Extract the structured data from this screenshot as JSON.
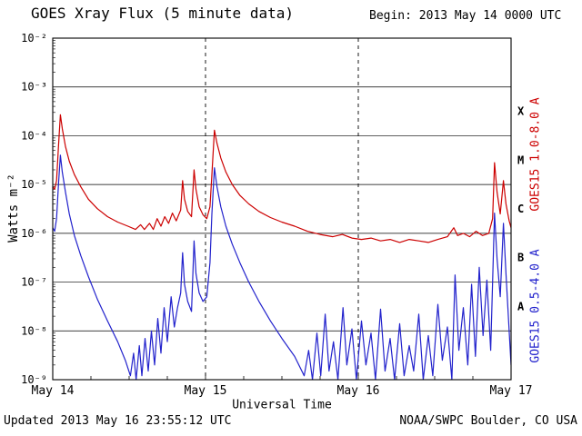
{
  "header": {
    "title": "GOES Xray Flux (5 minute data)",
    "begin_label": "Begin:  2013 May 14 0000 UTC"
  },
  "footer": {
    "updated": "Updated 2013 May 16 23:55:12 UTC",
    "source": "NOAA/SWPC Boulder, CO USA"
  },
  "chart_data": {
    "type": "line",
    "title": "GOES Xray Flux (5 minute data)",
    "xlabel": "Universal Time",
    "ylabel": "Watts m⁻²",
    "x_unit": "hours since 2013 May 14 0000 UTC",
    "xlim": [
      0,
      72
    ],
    "log_ylim": [
      -9,
      -2
    ],
    "x_ticks": [
      {
        "t": 0,
        "label": "May 14"
      },
      {
        "t": 24,
        "label": "May 15"
      },
      {
        "t": 48,
        "label": "May 16"
      },
      {
        "t": 72,
        "label": "May 17"
      }
    ],
    "y_ticks": [
      {
        "exp": -2,
        "label": "10⁻²"
      },
      {
        "exp": -3,
        "label": "10⁻³"
      },
      {
        "exp": -4,
        "label": "10⁻⁴"
      },
      {
        "exp": -5,
        "label": "10⁻⁵"
      },
      {
        "exp": -6,
        "label": "10⁻⁶"
      },
      {
        "exp": -7,
        "label": "10⁻⁷"
      },
      {
        "exp": -8,
        "label": "10⁻⁸"
      },
      {
        "exp": -9,
        "label": "10⁻⁹"
      }
    ],
    "flare_classes": [
      {
        "label": "X",
        "log_center": -3.5
      },
      {
        "label": "M",
        "log_center": -4.5
      },
      {
        "label": "C",
        "log_center": -5.5
      },
      {
        "label": "B",
        "log_center": -6.5
      },
      {
        "label": "A",
        "log_center": -7.5
      }
    ],
    "grid": {
      "h_lines_exp": [
        -3,
        -4,
        -5,
        -6,
        -7,
        -8
      ],
      "v_dashed_t": [
        24,
        48
      ]
    },
    "series": [
      {
        "name": "GOES15 1.0-8.0 A",
        "color": "#cc0000",
        "points": [
          [
            0,
            9e-06
          ],
          [
            0.3,
            8e-06
          ],
          [
            0.6,
            1.2e-05
          ],
          [
            0.9,
            6e-05
          ],
          [
            1.2,
            0.00027
          ],
          [
            1.5,
            0.00014
          ],
          [
            2.0,
            6e-05
          ],
          [
            2.6,
            3e-05
          ],
          [
            3.4,
            1.6e-05
          ],
          [
            4.4,
            9e-06
          ],
          [
            5.6,
            5e-06
          ],
          [
            7.0,
            3.2e-06
          ],
          [
            8.6,
            2.2e-06
          ],
          [
            10.2,
            1.7e-06
          ],
          [
            11.8,
            1.4e-06
          ],
          [
            13.0,
            1.2e-06
          ],
          [
            13.8,
            1.5e-06
          ],
          [
            14.4,
            1.2e-06
          ],
          [
            15.2,
            1.6e-06
          ],
          [
            15.8,
            1.2e-06
          ],
          [
            16.4,
            2e-06
          ],
          [
            17.0,
            1.4e-06
          ],
          [
            17.6,
            2.2e-06
          ],
          [
            18.2,
            1.6e-06
          ],
          [
            18.8,
            2.6e-06
          ],
          [
            19.4,
            1.8e-06
          ],
          [
            20.1,
            3e-06
          ],
          [
            20.4,
            1.2e-05
          ],
          [
            20.7,
            5e-06
          ],
          [
            21.2,
            2.8e-06
          ],
          [
            21.8,
            2.2e-06
          ],
          [
            22.2,
            2e-05
          ],
          [
            22.5,
            8e-06
          ],
          [
            23.0,
            3.5e-06
          ],
          [
            23.6,
            2.4e-06
          ],
          [
            24.2,
            2e-06
          ],
          [
            24.7,
            3.5e-06
          ],
          [
            25.0,
            1.6e-05
          ],
          [
            25.4,
            0.00013
          ],
          [
            25.8,
            7e-05
          ],
          [
            26.4,
            3.5e-05
          ],
          [
            27.2,
            1.8e-05
          ],
          [
            28.2,
            1e-05
          ],
          [
            29.4,
            6e-06
          ],
          [
            30.8,
            4e-06
          ],
          [
            32.4,
            2.8e-06
          ],
          [
            34.2,
            2.1e-06
          ],
          [
            36.0,
            1.7e-06
          ],
          [
            38.0,
            1.4e-06
          ],
          [
            40.0,
            1.1e-06
          ],
          [
            42.0,
            9.5e-07
          ],
          [
            44.0,
            8.5e-07
          ],
          [
            45.5,
            9.5e-07
          ],
          [
            47.0,
            8e-07
          ],
          [
            48.5,
            7.5e-07
          ],
          [
            50.0,
            8e-07
          ],
          [
            51.5,
            7e-07
          ],
          [
            53.0,
            7.5e-07
          ],
          [
            54.5,
            6.5e-07
          ],
          [
            56.0,
            7.5e-07
          ],
          [
            57.5,
            7e-07
          ],
          [
            59.0,
            6.5e-07
          ],
          [
            60.5,
            7.5e-07
          ],
          [
            62.0,
            8.5e-07
          ],
          [
            63.0,
            1.3e-06
          ],
          [
            63.6,
            9e-07
          ],
          [
            64.5,
            1e-06
          ],
          [
            65.5,
            8.5e-07
          ],
          [
            66.5,
            1.1e-06
          ],
          [
            67.5,
            9e-07
          ],
          [
            68.5,
            1e-06
          ],
          [
            69.1,
            2e-06
          ],
          [
            69.4,
            2.8e-05
          ],
          [
            69.8,
            7e-06
          ],
          [
            70.3,
            2.5e-06
          ],
          [
            70.8,
            1.2e-05
          ],
          [
            71.2,
            4e-06
          ],
          [
            71.7,
            1.8e-06
          ],
          [
            72,
            1.3e-06
          ]
        ]
      },
      {
        "name": "GOES15 0.5-4.0 A",
        "color": "#2222cc",
        "points": [
          [
            0,
            1.3e-06
          ],
          [
            0.3,
            1.1e-06
          ],
          [
            0.6,
            2e-06
          ],
          [
            0.9,
            1e-05
          ],
          [
            1.2,
            4e-05
          ],
          [
            1.5,
            1.8e-05
          ],
          [
            2.0,
            7e-06
          ],
          [
            2.6,
            2.5e-06
          ],
          [
            3.4,
            9e-07
          ],
          [
            4.4,
            3.5e-07
          ],
          [
            5.6,
            1.3e-07
          ],
          [
            7.0,
            4.5e-08
          ],
          [
            8.6,
            1.6e-08
          ],
          [
            10.2,
            6e-09
          ],
          [
            11.4,
            2.5e-09
          ],
          [
            12.2,
            1.2e-09
          ],
          [
            12.7,
            3.5e-09
          ],
          [
            13.1,
            1e-09
          ],
          [
            13.6,
            5e-09
          ],
          [
            14.0,
            1.2e-09
          ],
          [
            14.5,
            7e-09
          ],
          [
            15.0,
            1.5e-09
          ],
          [
            15.5,
            1e-08
          ],
          [
            16.0,
            2e-09
          ],
          [
            16.5,
            1.8e-08
          ],
          [
            17.0,
            3.5e-09
          ],
          [
            17.5,
            3e-08
          ],
          [
            18.0,
            6e-09
          ],
          [
            18.6,
            5e-08
          ],
          [
            19.1,
            1.2e-08
          ],
          [
            19.6,
            3e-08
          ],
          [
            20.1,
            6e-08
          ],
          [
            20.4,
            4e-07
          ],
          [
            20.7,
            9e-08
          ],
          [
            21.2,
            4e-08
          ],
          [
            21.8,
            2.5e-08
          ],
          [
            22.2,
            7e-07
          ],
          [
            22.5,
            1.5e-07
          ],
          [
            23.0,
            6e-08
          ],
          [
            23.6,
            4e-08
          ],
          [
            24.2,
            5e-08
          ],
          [
            24.7,
            2.5e-07
          ],
          [
            25.0,
            2.5e-06
          ],
          [
            25.4,
            2.2e-05
          ],
          [
            25.8,
            9e-06
          ],
          [
            26.4,
            3.5e-06
          ],
          [
            27.2,
            1.4e-06
          ],
          [
            28.2,
            6e-07
          ],
          [
            29.4,
            2.5e-07
          ],
          [
            30.8,
            1e-07
          ],
          [
            32.4,
            4e-08
          ],
          [
            34.2,
            1.6e-08
          ],
          [
            36.0,
            7e-09
          ],
          [
            38.0,
            3e-09
          ],
          [
            39.5,
            1.2e-09
          ],
          [
            40.2,
            4e-09
          ],
          [
            40.8,
            1e-09
          ],
          [
            41.5,
            9e-09
          ],
          [
            42.1,
            1.2e-09
          ],
          [
            42.8,
            2.2e-08
          ],
          [
            43.4,
            1.5e-09
          ],
          [
            44.1,
            6e-09
          ],
          [
            44.8,
            1e-09
          ],
          [
            45.6,
            3e-08
          ],
          [
            46.2,
            2e-09
          ],
          [
            47.0,
            1.1e-08
          ],
          [
            47.7,
            1e-09
          ],
          [
            48.5,
            1.6e-08
          ],
          [
            49.2,
            2e-09
          ],
          [
            50.0,
            9e-09
          ],
          [
            50.7,
            1e-09
          ],
          [
            51.5,
            2.8e-08
          ],
          [
            52.2,
            1.5e-09
          ],
          [
            53.0,
            7e-09
          ],
          [
            53.7,
            1e-09
          ],
          [
            54.5,
            1.4e-08
          ],
          [
            55.2,
            1.2e-09
          ],
          [
            56.0,
            5e-09
          ],
          [
            56.7,
            1.5e-09
          ],
          [
            57.5,
            2.2e-08
          ],
          [
            58.2,
            1e-09
          ],
          [
            59.0,
            8e-09
          ],
          [
            59.7,
            1.2e-09
          ],
          [
            60.5,
            3.5e-08
          ],
          [
            61.2,
            2.5e-09
          ],
          [
            62.0,
            1.2e-08
          ],
          [
            62.7,
            1e-09
          ],
          [
            63.2,
            1.4e-07
          ],
          [
            63.8,
            4e-09
          ],
          [
            64.5,
            3e-08
          ],
          [
            65.2,
            2e-09
          ],
          [
            65.8,
            9e-08
          ],
          [
            66.4,
            3e-09
          ],
          [
            67.0,
            2e-07
          ],
          [
            67.6,
            8e-09
          ],
          [
            68.2,
            1.1e-07
          ],
          [
            68.8,
            4e-09
          ],
          [
            69.4,
            2.6e-06
          ],
          [
            69.8,
            3e-07
          ],
          [
            70.3,
            5e-08
          ],
          [
            70.8,
            1.6e-06
          ],
          [
            71.2,
            1.5e-07
          ],
          [
            71.7,
            1e-08
          ],
          [
            72,
            2e-09
          ]
        ]
      }
    ]
  }
}
